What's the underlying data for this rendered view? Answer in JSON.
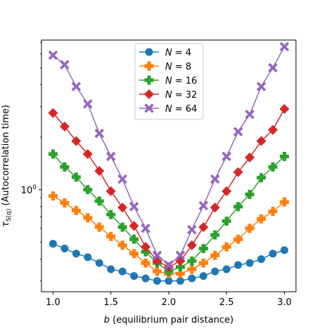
{
  "chart_data": {
    "type": "line",
    "title": "",
    "xlabel": "b (equilibrium pair distance)",
    "ylabel": "τ_{S(q)} (Autocorrelation time)",
    "yscale": "log",
    "xlim": [
      0.9,
      3.1
    ],
    "ylim": [
      0.26,
      7.2
    ],
    "xticks": [
      1.0,
      1.5,
      2.0,
      2.5,
      3.0
    ],
    "xtick_labels": [
      "1.0",
      "1.5",
      "2.0",
      "2.5",
      "3.0"
    ],
    "yticks": [
      1.0
    ],
    "ytick_labels": [
      "10^0"
    ],
    "grid": false,
    "legend_position": "upper center",
    "x": [
      1.0,
      1.1,
      1.2,
      1.3,
      1.4,
      1.5,
      1.6,
      1.7,
      1.8,
      1.9,
      2.0,
      2.1,
      2.2,
      2.3,
      2.4,
      2.5,
      2.6,
      2.7,
      2.8,
      2.9,
      3.0
    ],
    "series": [
      {
        "name": "N = 4",
        "label_n": "4",
        "marker": "circle",
        "color": "#1f77b4",
        "values": [
          0.49,
          0.46,
          0.43,
          0.41,
          0.38,
          0.35,
          0.34,
          0.32,
          0.31,
          0.3,
          0.3,
          0.3,
          0.31,
          0.32,
          0.34,
          0.35,
          0.37,
          0.38,
          0.4,
          0.43,
          0.45
        ]
      },
      {
        "name": "N = 8",
        "label_n": "8",
        "marker": "plus",
        "color": "#ff7f0e",
        "values": [
          0.92,
          0.84,
          0.76,
          0.69,
          0.61,
          0.54,
          0.48,
          0.43,
          0.38,
          0.34,
          0.33,
          0.33,
          0.35,
          0.38,
          0.42,
          0.47,
          0.52,
          0.6,
          0.68,
          0.75,
          0.85
        ]
      },
      {
        "name": "N = 16",
        "label_n": "16",
        "marker": "plus",
        "color": "#2ca02c",
        "values": [
          1.6,
          1.35,
          1.18,
          1.0,
          0.86,
          0.72,
          0.61,
          0.52,
          0.44,
          0.38,
          0.34,
          0.36,
          0.39,
          0.46,
          0.55,
          0.66,
          0.8,
          0.94,
          1.17,
          1.35,
          1.55
        ]
      },
      {
        "name": "N = 32",
        "label_n": "32",
        "marker": "diamond",
        "color": "#d62728",
        "values": [
          2.75,
          2.3,
          1.9,
          1.6,
          1.28,
          0.98,
          0.79,
          0.62,
          0.47,
          0.39,
          0.36,
          0.39,
          0.48,
          0.61,
          0.79,
          0.98,
          1.26,
          1.53,
          1.9,
          2.2,
          2.9
        ]
      },
      {
        "name": "N = 64",
        "label_n": "64",
        "marker": "x",
        "color": "#9467bd",
        "values": [
          5.9,
          5.2,
          3.9,
          3.1,
          2.1,
          1.55,
          1.15,
          0.8,
          0.6,
          0.42,
          0.37,
          0.42,
          0.59,
          0.81,
          1.15,
          1.55,
          2.15,
          2.7,
          3.9,
          5.0,
          6.6
        ]
      }
    ]
  }
}
